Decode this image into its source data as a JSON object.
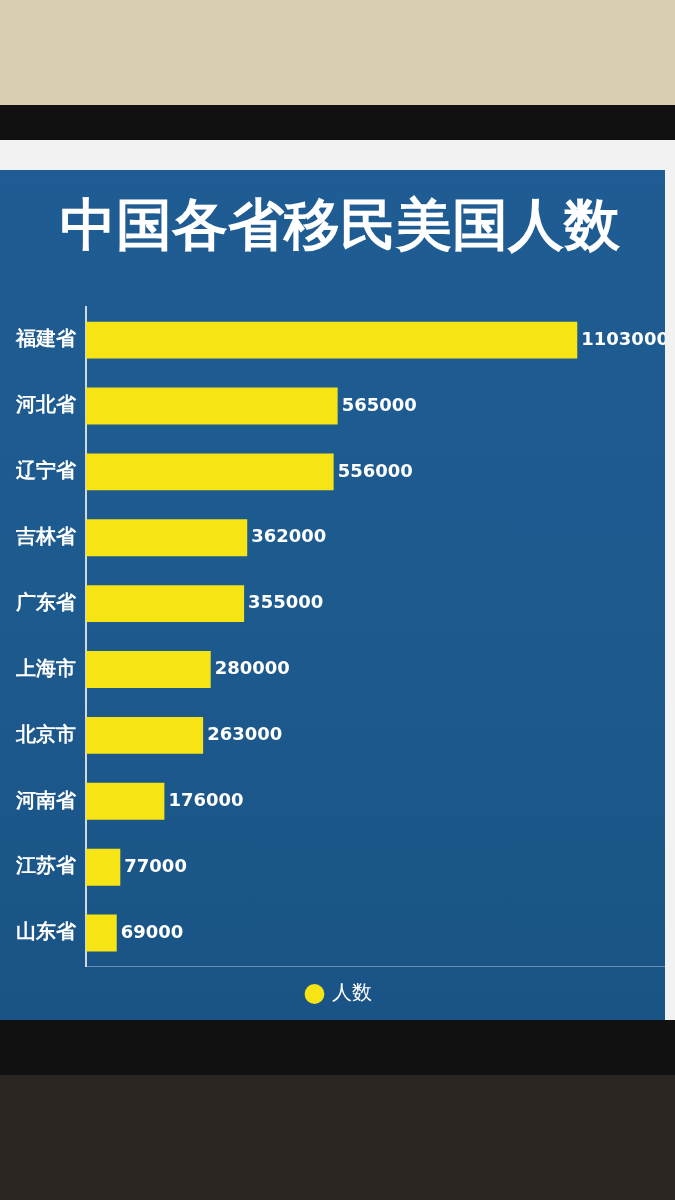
{
  "chart_data": {
    "type": "bar",
    "title": "中国各省移民美国人数",
    "orientation": "horizontal",
    "categories": [
      "福建省",
      "河北省",
      "辽宁省",
      "吉林省",
      "广东省",
      "上海市",
      "北京市",
      "河南省",
      "江苏省",
      "山东省"
    ],
    "series": [
      {
        "name": "人数",
        "color": "#f7e414",
        "values": [
          1103000,
          565000,
          556000,
          362000,
          355000,
          280000,
          263000,
          176000,
          77000,
          69000
        ]
      }
    ],
    "xlim": [
      0,
      1300000
    ],
    "data_labels": true,
    "tick_labels": "y",
    "grid": false,
    "legend": "bottom"
  }
}
